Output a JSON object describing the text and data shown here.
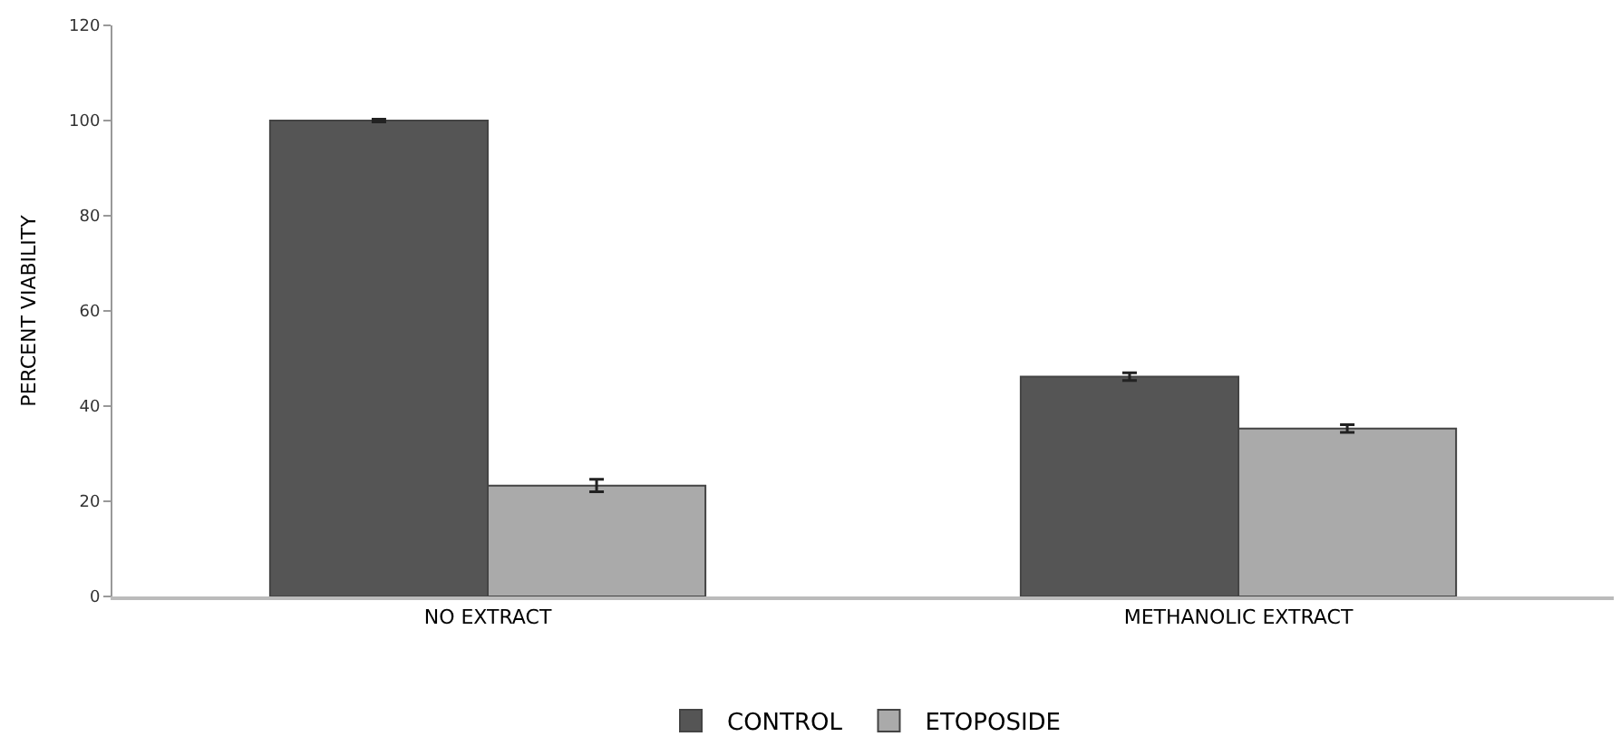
{
  "chart_data": {
    "type": "bar",
    "ylabel": "PERCENT VIABILITY",
    "categories": [
      "NO EXTRACT",
      "METHANOLIC EXTRACT"
    ],
    "series": [
      {
        "name": "CONTROL",
        "color": "#555555",
        "values": [
          100,
          46.2
        ],
        "errors": [
          0.3,
          0.8
        ]
      },
      {
        "name": "ETOPOSIDE",
        "color": "#aaaaaa",
        "values": [
          23.3,
          35.3
        ],
        "errors": [
          1.3,
          0.8
        ]
      }
    ],
    "ylim": [
      0,
      120
    ],
    "yticks": [
      0,
      20,
      40,
      60,
      80,
      100,
      120
    ],
    "legend": "bottom"
  }
}
